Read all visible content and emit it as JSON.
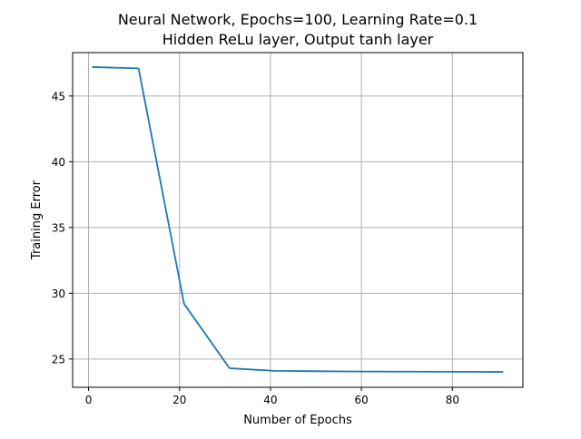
{
  "chart_data": {
    "type": "line",
    "title": "Neural Network, Epochs=100, Learning Rate=0.1",
    "subtitle": "Hidden ReLu layer, Output tanh layer",
    "xlabel": "Number of Epochs",
    "ylabel": "Training Error",
    "xlim": [
      -3.5,
      95.5
    ],
    "ylim": [
      22.85,
      48.3
    ],
    "xticks": [
      0,
      20,
      40,
      60,
      80
    ],
    "yticks": [
      25,
      30,
      35,
      40,
      45
    ],
    "grid": true,
    "series": [
      {
        "color": "#1f77b4",
        "x": [
          1,
          11,
          21,
          31,
          41,
          51,
          61,
          71,
          81,
          91
        ],
        "y": [
          47.2,
          47.1,
          29.2,
          24.3,
          24.1,
          24.07,
          24.05,
          24.04,
          24.03,
          24.02
        ]
      }
    ]
  }
}
